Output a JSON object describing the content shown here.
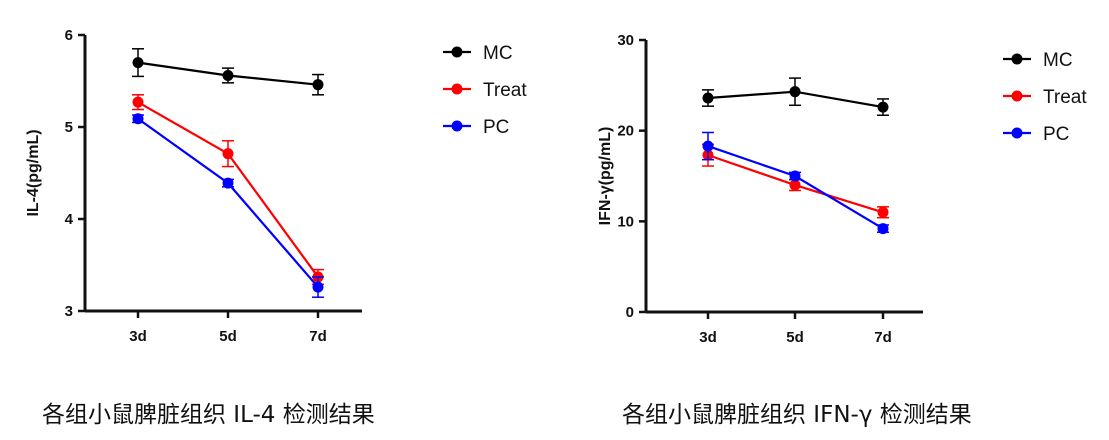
{
  "chart_data": [
    {
      "type": "line",
      "ylabel": "IL-4(pg/mL)",
      "xlabel": "",
      "categories": [
        "3d",
        "5d",
        "7d"
      ],
      "ylim": [
        3,
        6
      ],
      "yticks": [
        3,
        4,
        5,
        6
      ],
      "legend_position": "top-right",
      "series": [
        {
          "name": "MC",
          "color": "#000000",
          "values": [
            5.7,
            5.56,
            5.46
          ],
          "errors": [
            0.15,
            0.08,
            0.11
          ]
        },
        {
          "name": "Treat",
          "color": "#ff0000",
          "values": [
            5.27,
            4.71,
            3.37
          ],
          "errors": [
            0.08,
            0.14,
            0.08
          ]
        },
        {
          "name": "PC",
          "color": "#0000ff",
          "values": [
            5.09,
            4.39,
            3.26
          ],
          "errors": [
            0.04,
            0.04,
            0.11
          ]
        }
      ]
    },
    {
      "type": "line",
      "ylabel": "IFN-γ(pg/mL)",
      "xlabel": "",
      "categories": [
        "3d",
        "5d",
        "7d"
      ],
      "ylim": [
        0,
        30
      ],
      "yticks": [
        0,
        10,
        20,
        30
      ],
      "legend_position": "top-right",
      "series": [
        {
          "name": "MC",
          "color": "#000000",
          "values": [
            23.6,
            24.3,
            22.6
          ],
          "errors": [
            0.9,
            1.5,
            0.9
          ]
        },
        {
          "name": "Treat",
          "color": "#ff0000",
          "values": [
            17.3,
            14.0,
            11.0
          ],
          "errors": [
            1.2,
            0.6,
            0.6
          ]
        },
        {
          "name": "PC",
          "color": "#0000ff",
          "values": [
            18.3,
            15.0,
            9.2
          ],
          "errors": [
            1.5,
            0.4,
            0.4
          ]
        }
      ]
    }
  ],
  "captions": {
    "left": "各组小鼠脾脏组织 IL-4 检测结果",
    "right": "各组小鼠脾脏组织 IFN-γ 检测结果"
  }
}
